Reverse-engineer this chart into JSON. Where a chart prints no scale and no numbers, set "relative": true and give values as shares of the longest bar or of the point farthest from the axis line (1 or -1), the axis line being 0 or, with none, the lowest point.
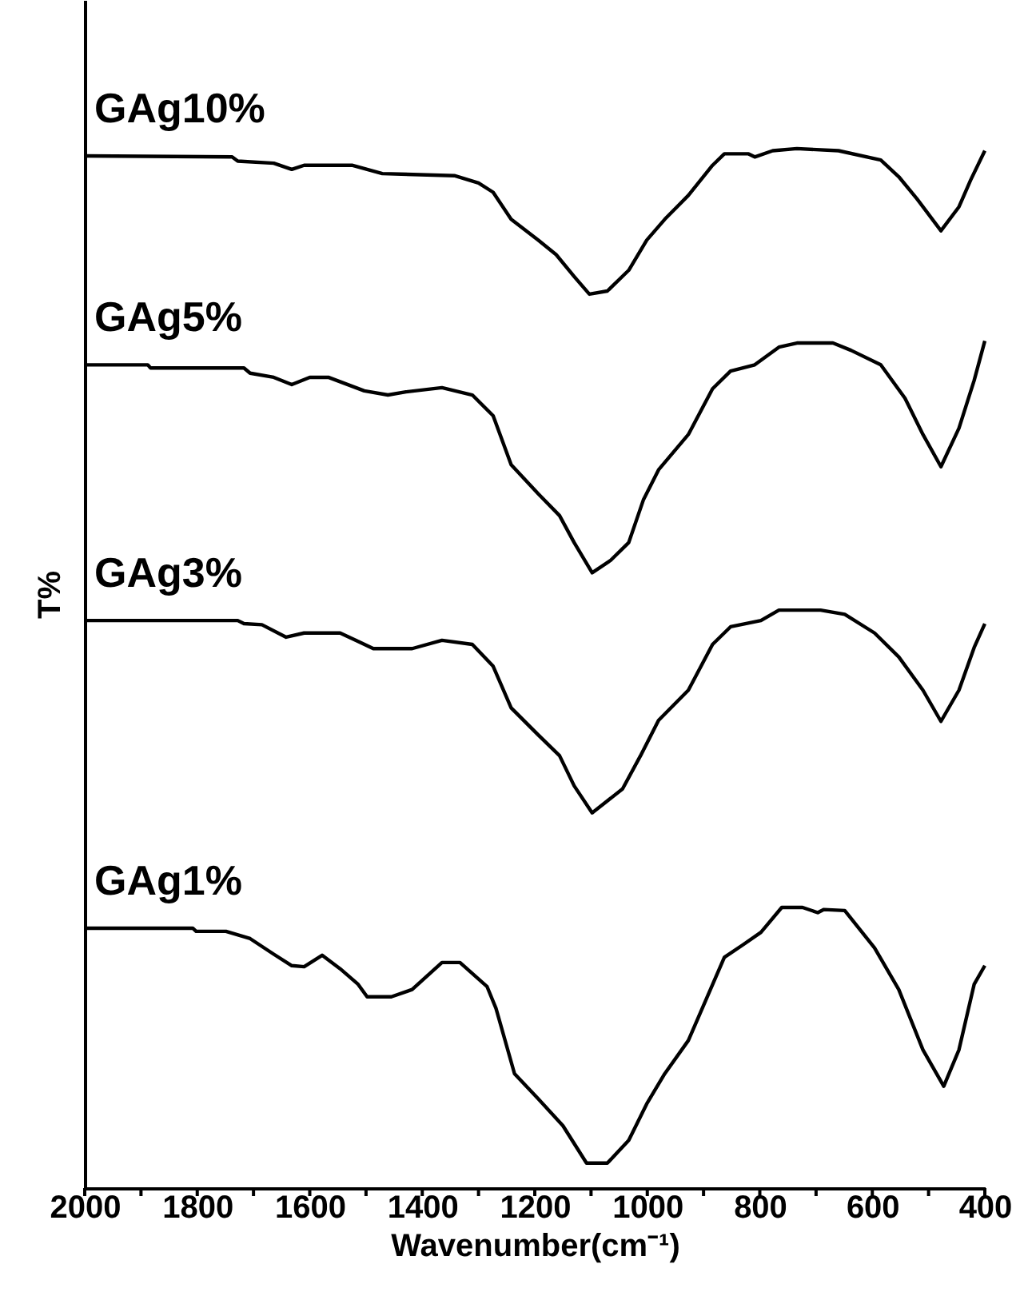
{
  "chart_data": {
    "type": "line",
    "relative": true,
    "xlabel": "Wavenumber(cm⁻¹)",
    "ylabel": "T%",
    "xlim": [
      2000,
      400
    ],
    "xticks": [
      2000,
      {
        "value": 1900,
        "label": null
      },
      1800,
      {
        "value": 1700,
        "label": null
      },
      1600,
      {
        "value": 1500,
        "label": null
      },
      1400,
      {
        "value": 1300,
        "label": null
      },
      1200,
      {
        "value": 1100,
        "label": null
      },
      1000,
      {
        "value": 900,
        "label": null
      },
      800,
      {
        "value": 700,
        "label": null
      },
      600,
      {
        "value": 500,
        "label": null
      },
      400
    ],
    "grid": false,
    "marker": "none",
    "line_style": "solid",
    "series": [
      {
        "name": "GAg10%",
        "color": "#000000",
        "x": [
          2000,
          1738,
          1728,
          1664,
          1632,
          1610,
          1525,
          1471,
          1343,
          1300,
          1274,
          1242,
          1194,
          1162,
          1130,
          1103,
          1071,
          1033,
          1001,
          969,
          927,
          884,
          863,
          820,
          809,
          777,
          734,
          660,
          585,
          553,
          521,
          478,
          446,
          425,
          400
        ],
        "values": [
          0.993,
          0.992,
          0.988,
          0.986,
          0.98,
          0.984,
          0.984,
          0.976,
          0.974,
          0.967,
          0.958,
          0.932,
          0.912,
          0.898,
          0.877,
          0.86,
          0.863,
          0.883,
          0.912,
          0.932,
          0.955,
          0.984,
          0.995,
          0.995,
          0.992,
          0.998,
          1.0,
          0.998,
          0.989,
          0.973,
          0.952,
          0.921,
          0.944,
          0.97,
          0.998
        ]
      },
      {
        "name": "GAg5%",
        "color": "#000000",
        "x": [
          2000,
          1888,
          1883,
          1717,
          1706,
          1664,
          1632,
          1600,
          1567,
          1503,
          1461,
          1429,
          1365,
          1311,
          1274,
          1242,
          1194,
          1156,
          1130,
          1098,
          1065,
          1033,
          1007,
          980,
          927,
          884,
          852,
          809,
          766,
          734,
          670,
          638,
          585,
          542,
          510,
          478,
          446,
          419,
          400
        ],
        "values": [
          0.792,
          0.792,
          0.789,
          0.789,
          0.784,
          0.78,
          0.773,
          0.78,
          0.78,
          0.767,
          0.763,
          0.766,
          0.77,
          0.763,
          0.743,
          0.696,
          0.668,
          0.647,
          0.621,
          0.592,
          0.604,
          0.621,
          0.662,
          0.691,
          0.725,
          0.769,
          0.786,
          0.792,
          0.809,
          0.813,
          0.813,
          0.806,
          0.792,
          0.76,
          0.725,
          0.694,
          0.731,
          0.777,
          0.815
        ]
      },
      {
        "name": "GAg3%",
        "color": "#000000",
        "x": [
          2000,
          1728,
          1717,
          1685,
          1642,
          1610,
          1546,
          1514,
          1487,
          1418,
          1365,
          1311,
          1274,
          1242,
          1194,
          1156,
          1130,
          1098,
          1044,
          1012,
          980,
          927,
          884,
          852,
          798,
          766,
          692,
          649,
          596,
          553,
          510,
          478,
          446,
          419,
          400
        ],
        "values": [
          0.546,
          0.546,
          0.543,
          0.542,
          0.53,
          0.534,
          0.534,
          0.526,
          0.519,
          0.519,
          0.527,
          0.523,
          0.502,
          0.462,
          0.436,
          0.416,
          0.387,
          0.361,
          0.384,
          0.416,
          0.45,
          0.479,
          0.523,
          0.54,
          0.546,
          0.556,
          0.556,
          0.552,
          0.534,
          0.511,
          0.479,
          0.449,
          0.479,
          0.52,
          0.543
        ]
      },
      {
        "name": "GAg1%",
        "color": "#000000",
        "x": [
          2000,
          1808,
          1802,
          1749,
          1706,
          1664,
          1632,
          1610,
          1578,
          1546,
          1514,
          1498,
          1455,
          1418,
          1365,
          1333,
          1285,
          1269,
          1236,
          1194,
          1150,
          1108,
          1071,
          1033,
          1001,
          969,
          927,
          895,
          863,
          830,
          798,
          761,
          724,
          697,
          686,
          649,
          596,
          553,
          510,
          473,
          446,
          419,
          400
        ],
        "values": [
          0.25,
          0.25,
          0.247,
          0.247,
          0.24,
          0.225,
          0.214,
          0.213,
          0.224,
          0.211,
          0.196,
          0.184,
          0.184,
          0.191,
          0.217,
          0.217,
          0.194,
          0.173,
          0.11,
          0.086,
          0.06,
          0.024,
          0.024,
          0.046,
          0.081,
          0.11,
          0.142,
          0.182,
          0.222,
          0.234,
          0.246,
          0.27,
          0.27,
          0.265,
          0.268,
          0.267,
          0.231,
          0.191,
          0.133,
          0.098,
          0.133,
          0.196,
          0.214
        ]
      }
    ]
  }
}
